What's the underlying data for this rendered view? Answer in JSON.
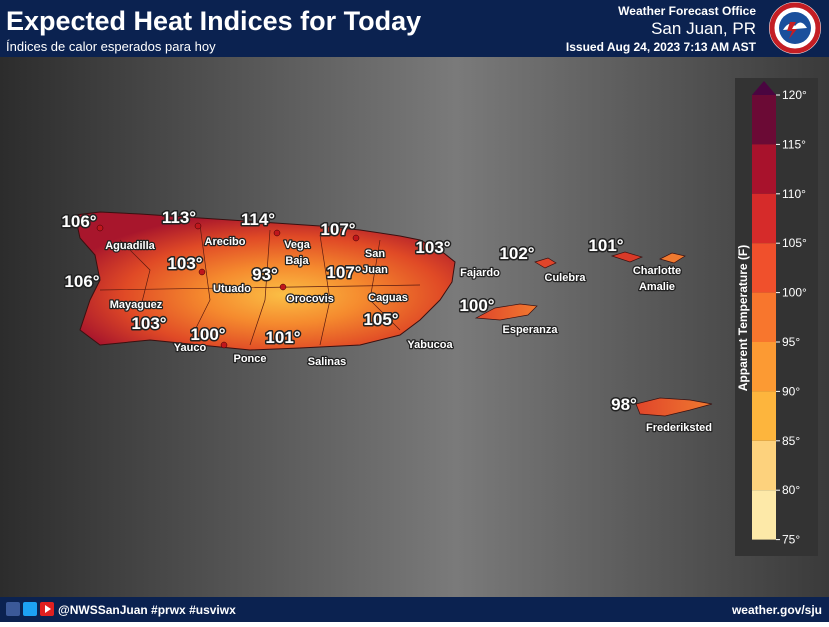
{
  "header": {
    "title": "Expected Heat Indices for Today",
    "subtitle": "Índices de calor esperados para hoy",
    "office": "Weather Forecast Office",
    "location": "San Juan, PR",
    "issued": "Issued Aug 24, 2023 7:13 AM AST"
  },
  "map": {
    "temperatures": [
      "106°",
      "113°",
      "114°",
      "107°",
      "103°",
      "102°",
      "101°",
      "106°",
      "103°",
      "93°",
      "107°",
      "100°",
      "105°",
      "103°",
      "100°",
      "101°",
      "98°"
    ],
    "places": [
      [
        "Aguadilla"
      ],
      [
        "Arecibo"
      ],
      [
        "Vega",
        "Baja"
      ],
      [
        "San",
        "Juan"
      ],
      [
        "Fajardo"
      ],
      [
        "Culebra"
      ],
      [
        "Charlotte",
        "Amalie"
      ],
      [
        "Utuado"
      ],
      [
        "Orocovis"
      ],
      [
        "Caguas"
      ],
      [
        "Mayaguez"
      ],
      [
        "Esperanza"
      ],
      [
        "Yabucoa"
      ],
      [
        "Yauco"
      ],
      [
        "Ponce"
      ],
      [
        "Salinas"
      ],
      [
        "Frederiksted"
      ]
    ]
  },
  "legend": {
    "title": "Apparent Temperature (F)",
    "ticks": [
      "120°",
      "115°",
      "110°",
      "105°",
      "100°",
      "95°",
      "90°",
      "85°",
      "80°",
      "75°"
    ]
  },
  "footer": {
    "social": "@NWSSanJuan #prwx #usviwx",
    "website": "weather.gov/sju"
  }
}
